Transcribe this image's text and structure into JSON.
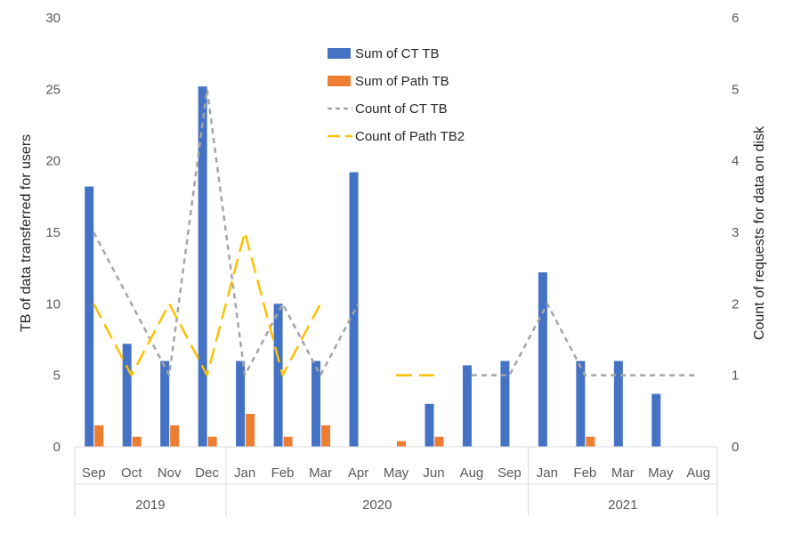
{
  "chart_data": {
    "type": "bar",
    "title": "",
    "ylabel": "TB of data transferred for users",
    "y2label": "Count of requests for data on disk",
    "ylim": [
      0,
      30
    ],
    "y2lim": [
      0,
      6
    ],
    "yticks": [
      0,
      5,
      10,
      15,
      20,
      25,
      30
    ],
    "y2ticks": [
      0,
      1,
      2,
      3,
      4,
      5,
      6
    ],
    "grid": false,
    "legend_position": "top-center",
    "categories": [
      "Sep",
      "Oct",
      "Nov",
      "Dec",
      "Jan",
      "Feb",
      "Mar",
      "Apr",
      "May",
      "Jun",
      "Aug",
      "Sep",
      "Jan",
      "Feb",
      "Mar",
      "May",
      "Aug"
    ],
    "year_groups": [
      {
        "label": "2019",
        "start": 0,
        "end": 3
      },
      {
        "label": "2020",
        "start": 4,
        "end": 11
      },
      {
        "label": "2021",
        "start": 12,
        "end": 16
      }
    ],
    "series": [
      {
        "name": "Sum of CT TB",
        "kind": "bar",
        "axis": "left",
        "color": "#4472C4",
        "values": [
          18.2,
          7.2,
          6.0,
          25.2,
          6.0,
          10.0,
          6.0,
          19.2,
          null,
          3.0,
          5.7,
          6.0,
          12.2,
          6.0,
          6.0,
          3.7,
          null
        ]
      },
      {
        "name": "Sum of Path TB",
        "kind": "bar",
        "axis": "left",
        "color": "#ED7D31",
        "values": [
          1.5,
          0.7,
          1.5,
          0.7,
          2.3,
          0.7,
          1.5,
          null,
          0.4,
          0.7,
          null,
          null,
          null,
          0.7,
          null,
          null,
          null
        ]
      },
      {
        "name": "Count of CT TB",
        "kind": "line",
        "axis": "right",
        "color": "#A5A5A5",
        "dash": "dashed",
        "values": [
          3,
          2,
          1,
          5,
          1,
          2,
          1,
          2,
          null,
          null,
          1,
          1,
          2,
          1,
          1,
          1,
          1
        ]
      },
      {
        "name": "Count of Path TB2",
        "kind": "line",
        "axis": "right",
        "color": "#FFC000",
        "dash": "long-dash",
        "values": [
          2,
          1,
          2,
          1,
          3,
          1,
          2,
          null,
          1,
          1,
          null,
          null,
          null,
          null,
          null,
          null,
          null
        ]
      }
    ]
  }
}
